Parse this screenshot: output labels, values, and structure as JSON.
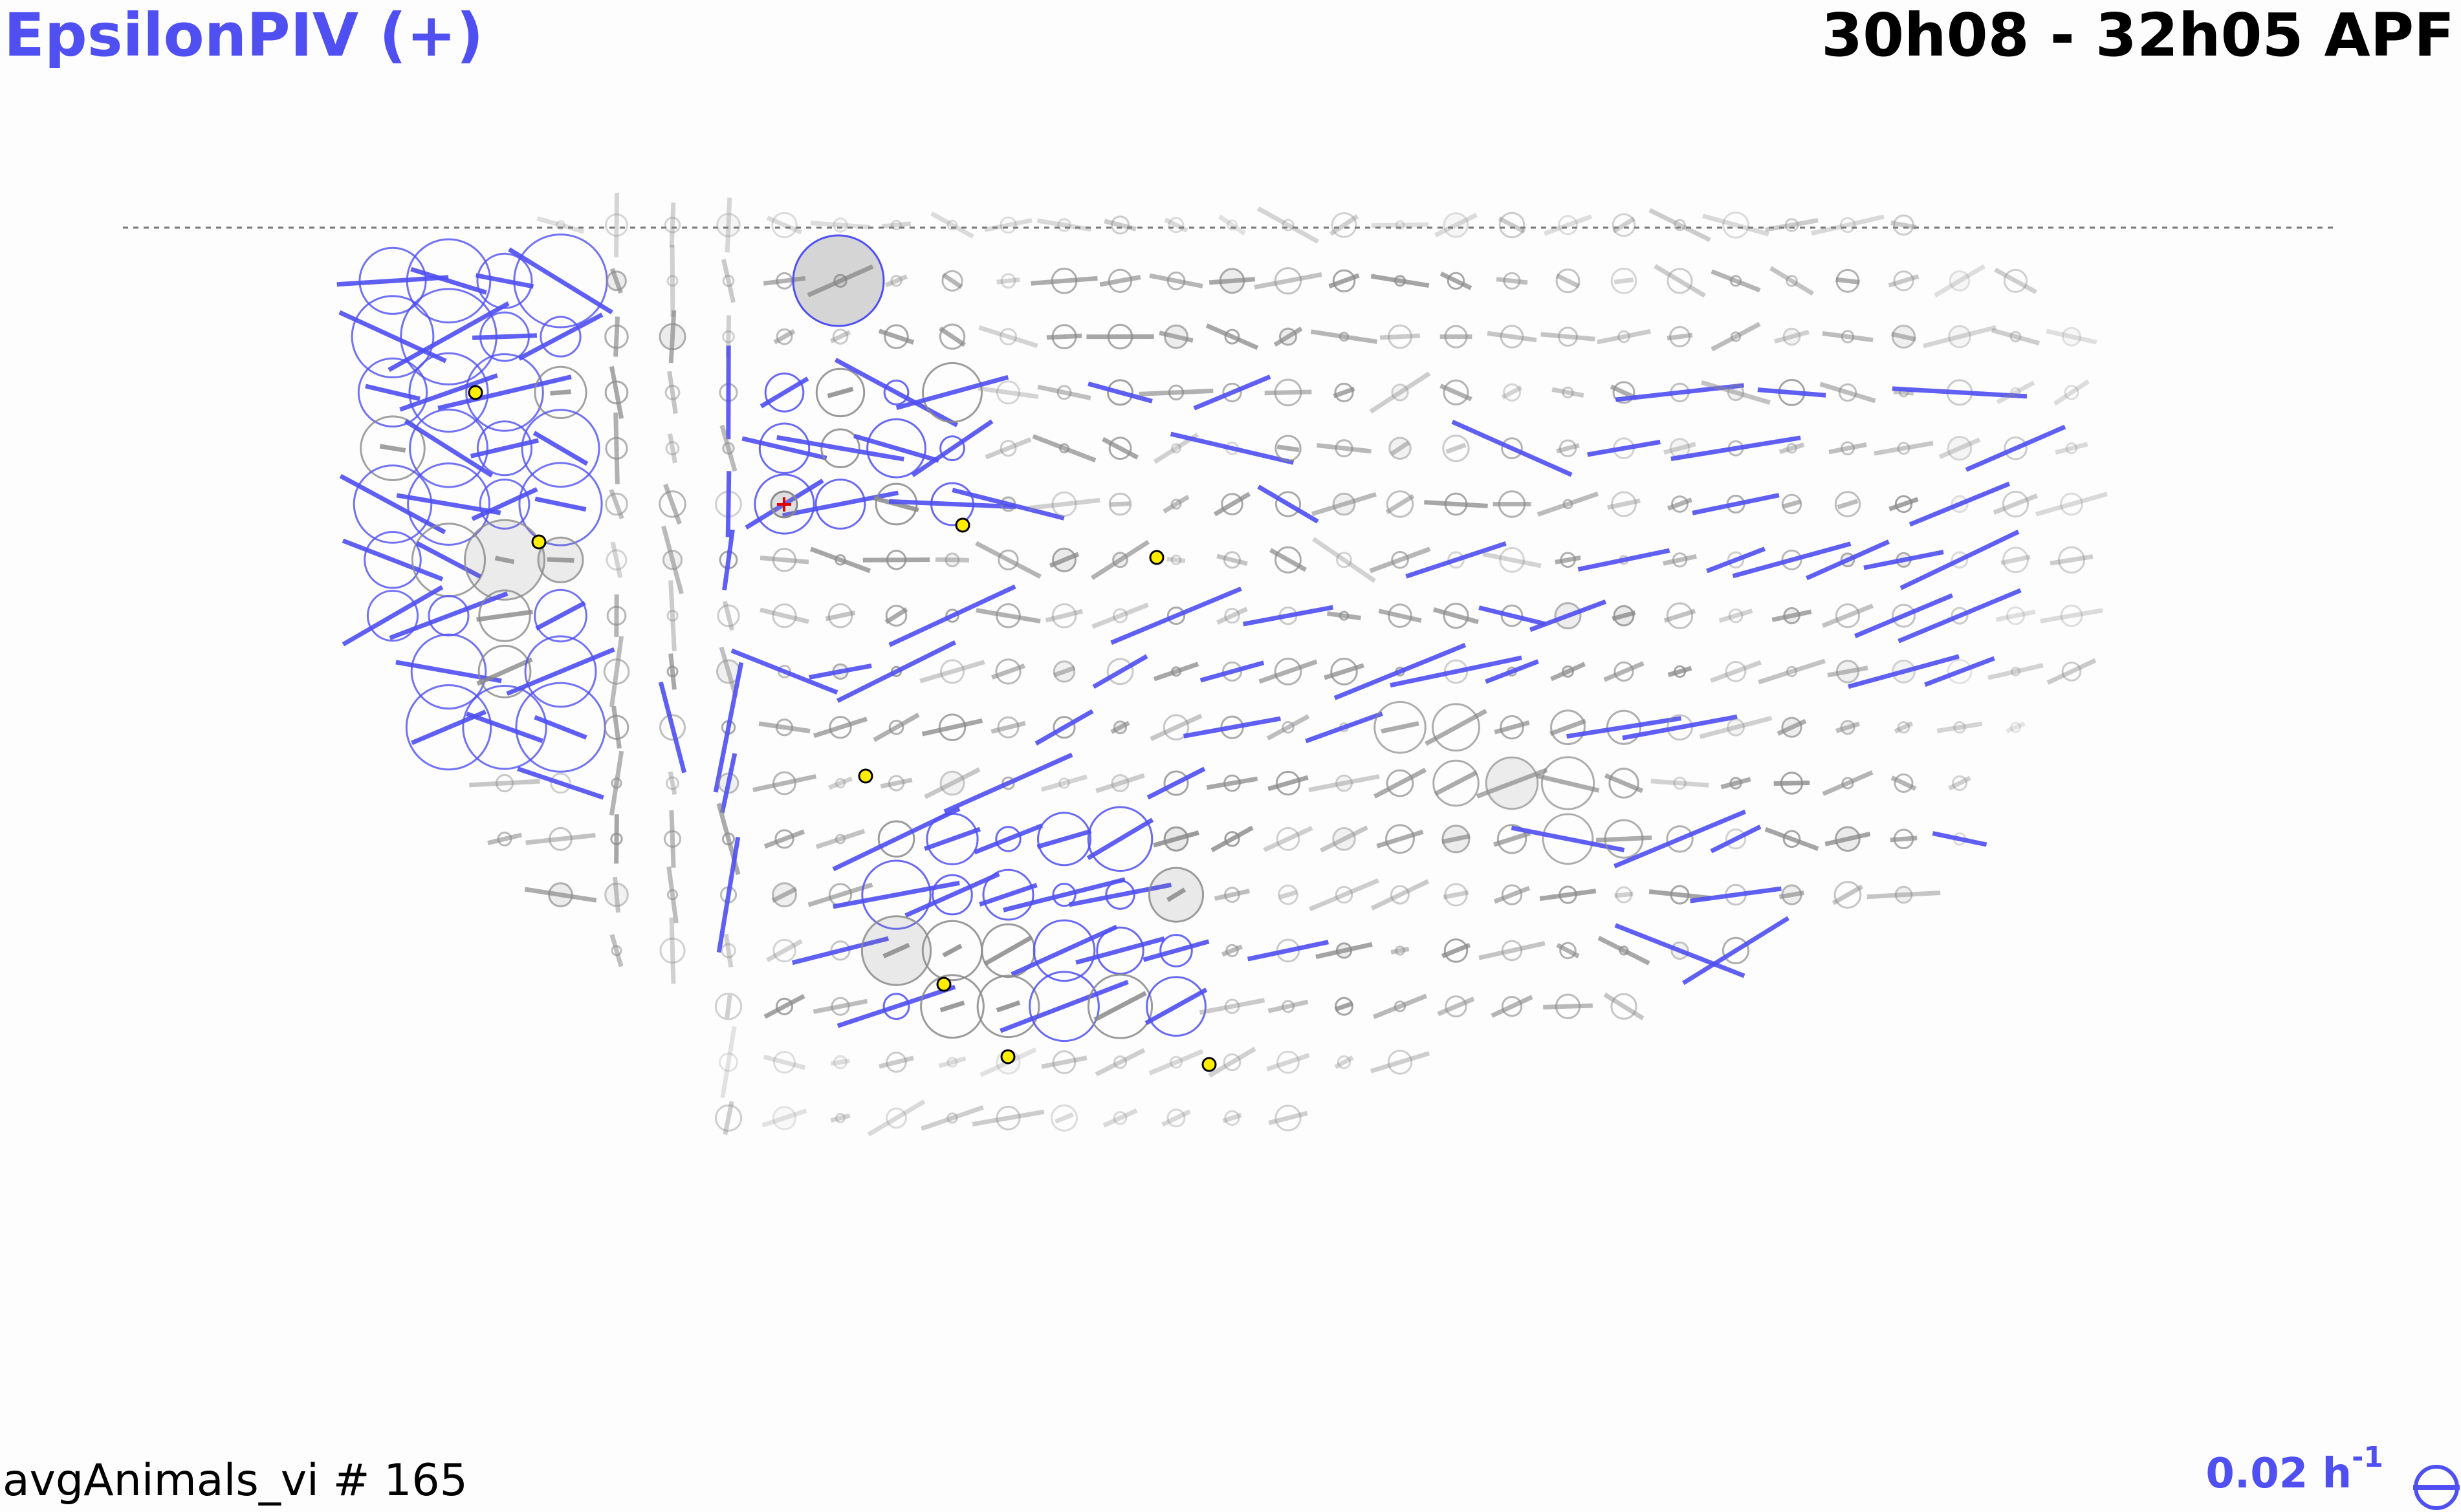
{
  "header": {
    "title": "EpsilonPIV (+)",
    "time_range": "30h08 - 32h05 APF"
  },
  "footer": {
    "source_label": "avgAnimals_vi # 165",
    "scale_value": "0.02 h",
    "scale_exponent": "-1"
  },
  "colors": {
    "positive": "#4f4ff2",
    "neutral": "#8a8a8a",
    "marker_fill": "#ffee00",
    "origin_marker": "#e00000"
  },
  "icons": {
    "scale_symbol": "strain-circle-icon",
    "origin_marker": "red-cross-icon",
    "landmark": "yellow-dot-icon"
  }
}
